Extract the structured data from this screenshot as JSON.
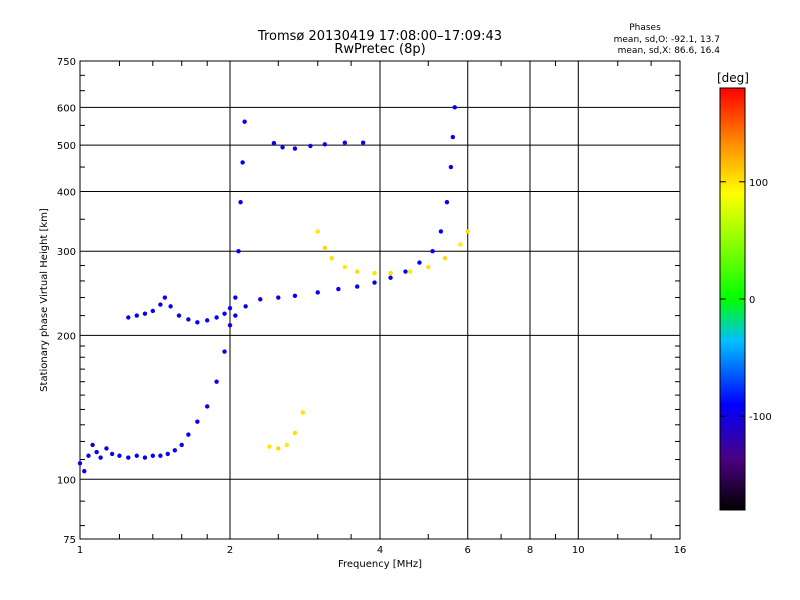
{
  "header": {
    "title_line1": "Tromsø 20130419 17:08:00–17:09:43",
    "title_line2": "RwPretec (8p)",
    "phase_title": "Phases",
    "phase_o": "mean, sd,O: -92.1, 13.7",
    "phase_x": "mean, sd,X: 86.6, 16.4"
  },
  "colorbar": {
    "unit_label": "[deg]",
    "tick_labels": [
      "100",
      "0",
      "-100"
    ],
    "tick_values": [
      100,
      0,
      -100
    ],
    "range": [
      -180,
      180
    ]
  },
  "chart_data": {
    "type": "scatter",
    "title": "Tromsø 20130419 17:08:00–17:09:43",
    "subtitle": "RwPretec (8p)",
    "xlabel": "Frequency [MHz]",
    "ylabel": "Stationary phase Virtual Height [km]",
    "xscale": "log",
    "yscale": "log",
    "xlim": [
      1,
      16
    ],
    "ylim": [
      75,
      750
    ],
    "x_ticks": [
      1,
      2,
      4,
      6,
      8,
      10,
      16
    ],
    "y_ticks": [
      75,
      100,
      200,
      300,
      400,
      500,
      600,
      750
    ],
    "grid": true,
    "color_by": "phase_deg",
    "series": [
      {
        "points": [
          [
            1.0,
            108,
            -95
          ],
          [
            1.02,
            104,
            -100
          ],
          [
            1.04,
            112,
            -98
          ],
          [
            1.06,
            118,
            -96
          ],
          [
            1.08,
            114,
            -102
          ],
          [
            1.1,
            111,
            -99
          ],
          [
            1.13,
            116,
            -97
          ],
          [
            1.16,
            113,
            -101
          ],
          [
            1.2,
            112,
            -94
          ],
          [
            1.25,
            111,
            -96
          ],
          [
            1.3,
            112,
            -92
          ],
          [
            1.35,
            111,
            -100
          ],
          [
            1.4,
            112,
            -95
          ],
          [
            1.45,
            112,
            -98
          ],
          [
            1.5,
            113,
            -96
          ],
          [
            1.55,
            115,
            -94
          ],
          [
            1.6,
            118,
            -97
          ],
          [
            1.65,
            124,
            -93
          ],
          [
            1.72,
            132,
            -95
          ],
          [
            1.8,
            142,
            -96
          ],
          [
            1.88,
            160,
            -94
          ],
          [
            1.95,
            185,
            -92
          ],
          [
            2.0,
            210,
            -95
          ],
          [
            2.05,
            240,
            -93
          ],
          [
            2.08,
            300,
            -90
          ],
          [
            2.1,
            380,
            -92
          ],
          [
            2.12,
            460,
            -94
          ],
          [
            2.14,
            560,
            -93
          ]
        ]
      },
      {
        "points": [
          [
            1.25,
            218,
            -96
          ],
          [
            1.3,
            220,
            -94
          ],
          [
            1.35,
            222,
            -98
          ],
          [
            1.4,
            225,
            -95
          ],
          [
            1.45,
            232,
            -93
          ],
          [
            1.48,
            240,
            -95
          ],
          [
            1.52,
            230,
            -97
          ],
          [
            1.58,
            220,
            -94
          ],
          [
            1.65,
            216,
            -96
          ],
          [
            1.72,
            213,
            -95
          ],
          [
            1.8,
            215,
            -97
          ],
          [
            1.88,
            218,
            -93
          ],
          [
            1.95,
            222,
            -96
          ],
          [
            2.0,
            228,
            -94
          ]
        ]
      },
      {
        "points": [
          [
            2.05,
            220,
            -95
          ],
          [
            2.15,
            230,
            -93
          ],
          [
            2.3,
            238,
            -96
          ],
          [
            2.5,
            240,
            -94
          ],
          [
            2.7,
            242,
            -95
          ],
          [
            3.0,
            246,
            -93
          ],
          [
            3.3,
            250,
            -96
          ],
          [
            3.6,
            253,
            -94
          ],
          [
            3.9,
            258,
            -95
          ],
          [
            4.2,
            264,
            -92
          ],
          [
            4.5,
            272,
            -96
          ],
          [
            4.8,
            284,
            -94
          ],
          [
            5.1,
            300,
            -90
          ],
          [
            5.3,
            330,
            -92
          ],
          [
            5.45,
            380,
            -94
          ],
          [
            5.55,
            450,
            -93
          ],
          [
            5.6,
            520,
            -95
          ],
          [
            5.65,
            600,
            -92
          ]
        ]
      },
      {
        "points": [
          [
            2.45,
            505,
            -94
          ],
          [
            2.55,
            495,
            -96
          ],
          [
            2.7,
            492,
            -93
          ],
          [
            2.9,
            498,
            -95
          ],
          [
            3.1,
            502,
            -94
          ],
          [
            3.4,
            506,
            -96
          ],
          [
            3.7,
            506,
            -93
          ]
        ]
      },
      {
        "points": [
          [
            3.0,
            330,
            100
          ],
          [
            3.1,
            305,
            105
          ],
          [
            3.2,
            290,
            102
          ],
          [
            3.4,
            278,
            98
          ],
          [
            3.6,
            272,
            104
          ],
          [
            3.9,
            270,
            100
          ],
          [
            4.2,
            270,
            103
          ],
          [
            4.6,
            272,
            99
          ],
          [
            5.0,
            278,
            101
          ],
          [
            5.4,
            290,
            104
          ],
          [
            5.8,
            310,
            97
          ],
          [
            6.0,
            330,
            102
          ]
        ]
      },
      {
        "points": [
          [
            2.4,
            117,
            100
          ],
          [
            2.5,
            116,
            104
          ],
          [
            2.6,
            118,
            98
          ],
          [
            2.7,
            125,
            102
          ],
          [
            2.8,
            138,
            101
          ]
        ]
      }
    ]
  }
}
